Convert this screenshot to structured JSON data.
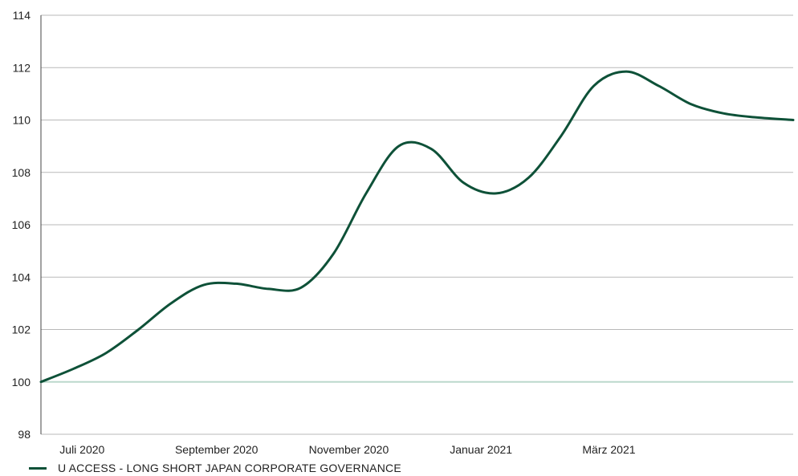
{
  "colors": {
    "series": "#0e5138",
    "baseline": "#bcd8cc",
    "grid": "#b9b9b9",
    "axis": "#444444"
  },
  "chart_data": {
    "type": "line",
    "title": "",
    "xlabel": "",
    "ylabel": "",
    "ylim": [
      98,
      114
    ],
    "y_ticks": [
      98,
      100,
      102,
      104,
      106,
      108,
      110,
      112,
      114
    ],
    "x_range": [
      "2020-06-12",
      "2021-05-25"
    ],
    "x_ticks": [
      {
        "date": "2020-07-01",
        "label": "Juli 2020"
      },
      {
        "date": "2020-09-01",
        "label": "September 2020"
      },
      {
        "date": "2020-11-01",
        "label": "November 2020"
      },
      {
        "date": "2021-01-01",
        "label": "Januar 2021"
      },
      {
        "date": "2021-03-01",
        "label": "März 2021"
      }
    ],
    "grid": "horizontal",
    "reference_line": 100,
    "legend_position": "bottom-left",
    "series": [
      {
        "name": "U ACCESS - LONG SHORT JAPAN CORPORATE GOVERNANCE",
        "points": [
          [
            "2020-06-12",
            100.0
          ],
          [
            "2020-06-27",
            100.5
          ],
          [
            "2020-07-12",
            101.1
          ],
          [
            "2020-07-27",
            102.0
          ],
          [
            "2020-08-11",
            103.0
          ],
          [
            "2020-08-26",
            103.7
          ],
          [
            "2020-09-10",
            103.75
          ],
          [
            "2020-09-25",
            103.55
          ],
          [
            "2020-10-10",
            103.6
          ],
          [
            "2020-10-25",
            104.9
          ],
          [
            "2020-11-09",
            107.2
          ],
          [
            "2020-11-24",
            109.0
          ],
          [
            "2020-12-09",
            108.9
          ],
          [
            "2020-12-24",
            107.6
          ],
          [
            "2021-01-08",
            107.2
          ],
          [
            "2021-01-23",
            107.8
          ],
          [
            "2021-02-07",
            109.4
          ],
          [
            "2021-02-22",
            111.3
          ],
          [
            "2021-03-09",
            111.85
          ],
          [
            "2021-03-24",
            111.3
          ],
          [
            "2021-04-08",
            110.6
          ],
          [
            "2021-04-23",
            110.25
          ],
          [
            "2021-05-08",
            110.1
          ],
          [
            "2021-05-25",
            110.0
          ]
        ]
      }
    ]
  }
}
